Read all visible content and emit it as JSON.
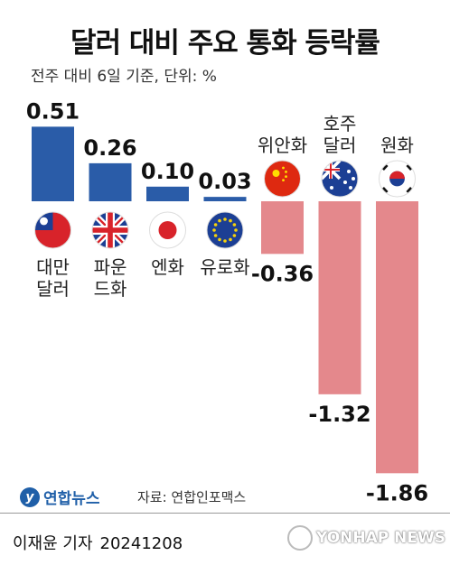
{
  "title": "달러 대비 주요 통화 등락률",
  "subtitle": "전주 대비 6일 기준, 단위: %",
  "colors": {
    "positive": "#2a5ca8",
    "negative": "#e4888c"
  },
  "chart_data": {
    "type": "bar",
    "categories": [
      {
        "name": "대만 달러",
        "lines": [
          "대만",
          "달러"
        ],
        "flag": "taiwan-flag-icon"
      },
      {
        "name": "파운드화",
        "lines": [
          "파운",
          "드화"
        ],
        "flag": "uk-flag-icon"
      },
      {
        "name": "엔화",
        "lines": [
          "엔화"
        ],
        "flag": "japan-flag-icon"
      },
      {
        "name": "유로화",
        "lines": [
          "유로화"
        ],
        "flag": "eu-flag-icon"
      },
      {
        "name": "위안화",
        "lines": [
          "위안화"
        ],
        "flag": "china-flag-icon"
      },
      {
        "name": "호주 달러",
        "lines": [
          "호주",
          "달러"
        ],
        "flag": "australia-flag-icon"
      },
      {
        "name": "원화",
        "lines": [
          "원화"
        ],
        "flag": "korea-flag-icon"
      }
    ],
    "values": [
      0.51,
      0.26,
      0.1,
      0.03,
      -0.36,
      -1.32,
      -1.86
    ],
    "value_labels": [
      "0.51",
      "0.26",
      "0.10",
      "0.03",
      "-0.36",
      "-1.32",
      "-1.86"
    ]
  },
  "footer": {
    "logo": "연합뉴스",
    "source": "자료: 연합인포맥스",
    "reporter": "이재윤 기자",
    "date": "20241208",
    "watermark": "YONHAP NEWS"
  }
}
